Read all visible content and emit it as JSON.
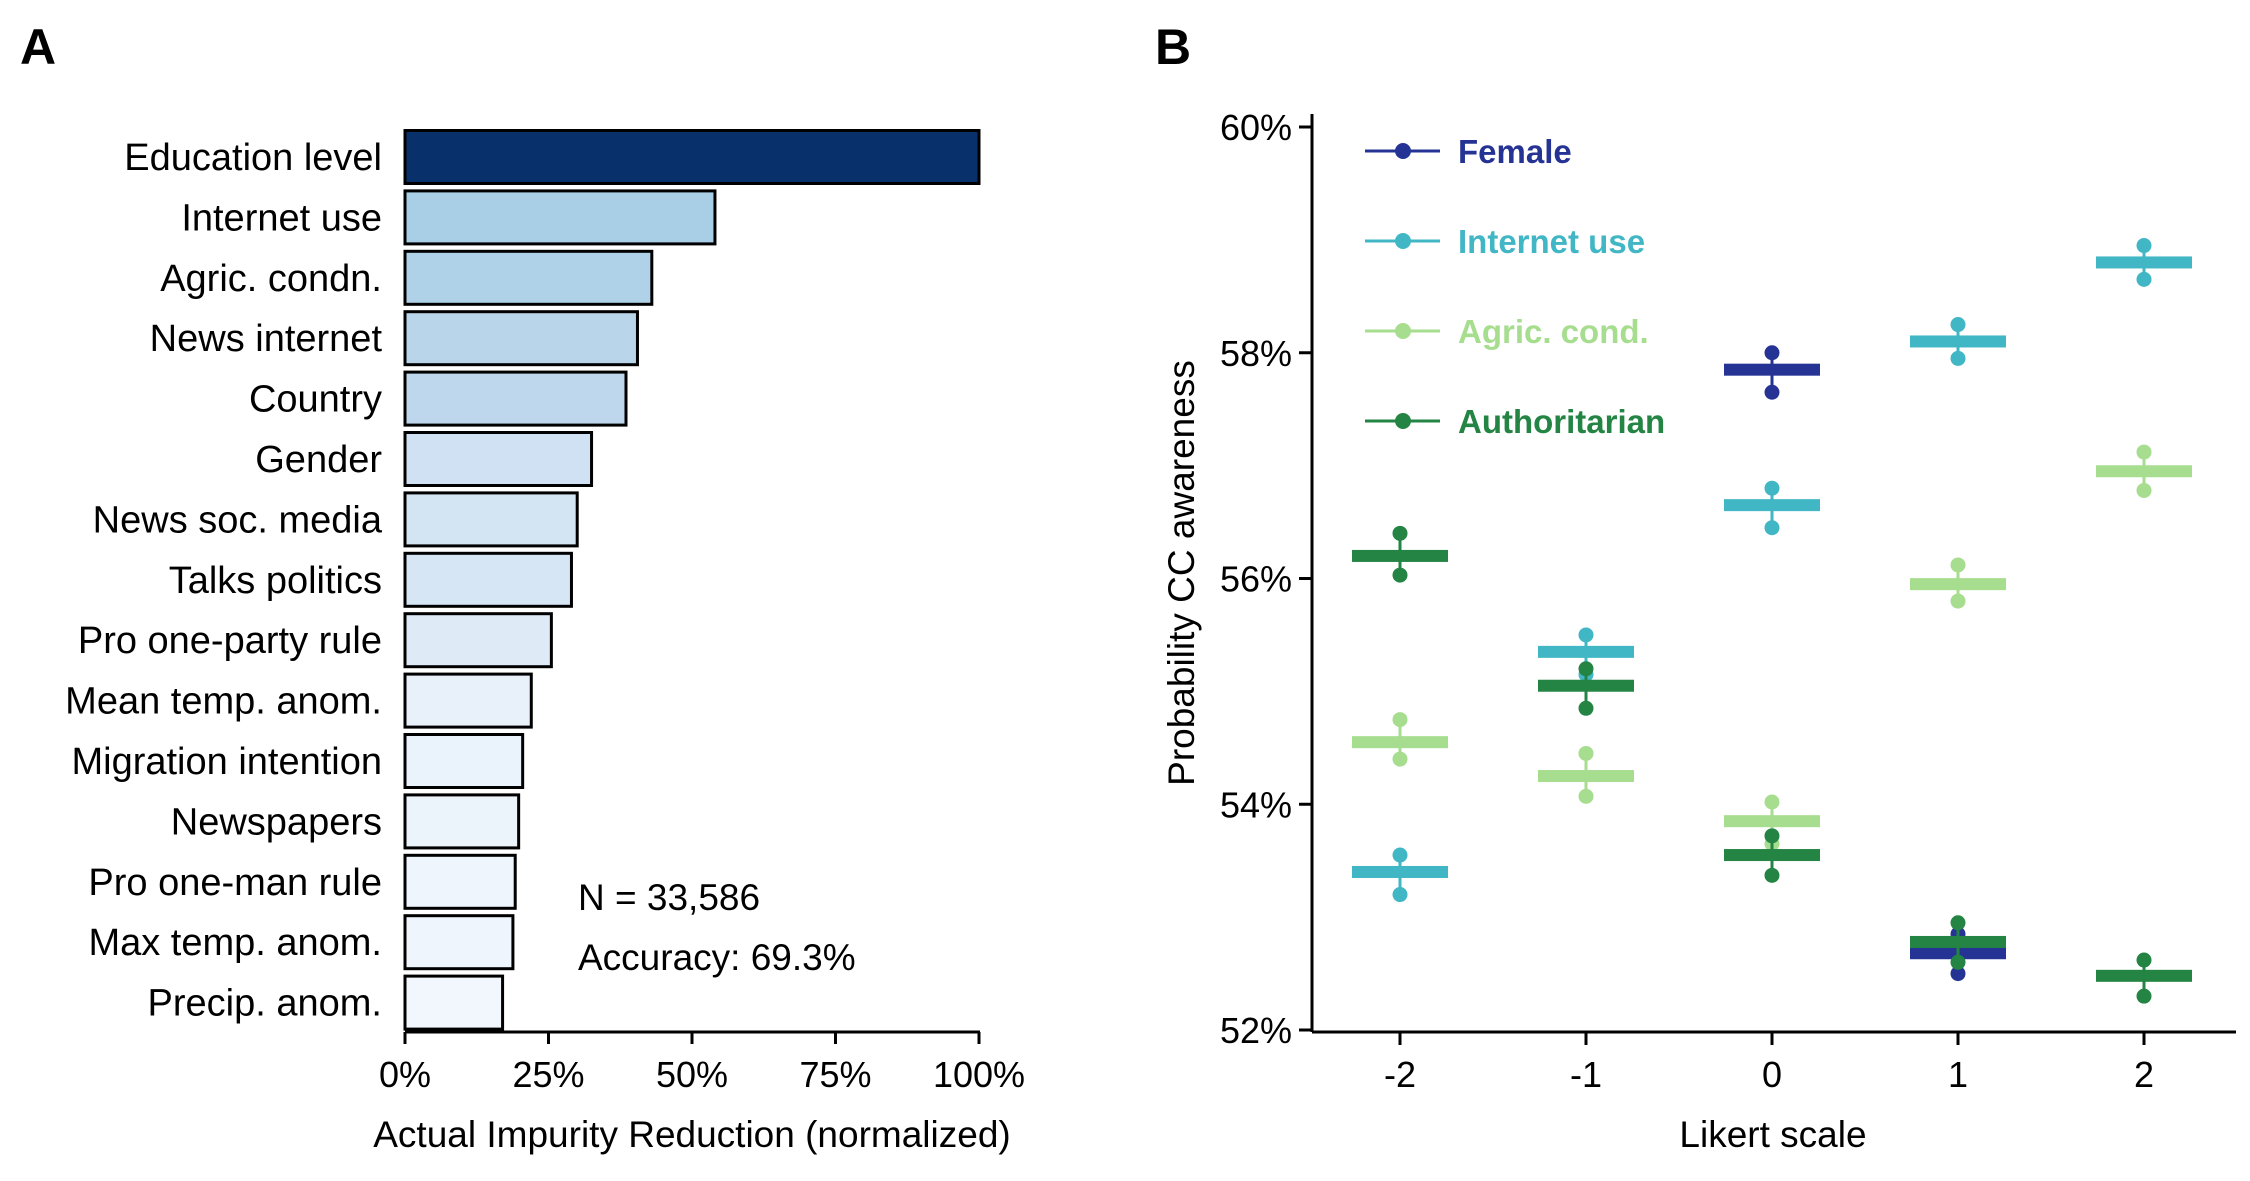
{
  "panels": {
    "a_label": "A",
    "b_label": "B"
  },
  "chart_data": [
    {
      "type": "bar",
      "orientation": "horizontal",
      "categories": [
        "Education level",
        "Internet use",
        "Agric. condn.",
        "News internet",
        "Country",
        "Gender",
        "News soc. media",
        "Talks politics",
        "Pro one-party rule",
        "Mean temp. anom.",
        "Migration intention",
        "Newspapers",
        "Pro one-man rule",
        "Max temp. anom.",
        "Precip. anom."
      ],
      "values": [
        100,
        54,
        43,
        40.5,
        38.5,
        32.5,
        30,
        29,
        25.5,
        22,
        20.5,
        19.8,
        19.2,
        18.8,
        17
      ],
      "colors": [
        "#08306b",
        "#a8cfe5",
        "#b0d2e8",
        "#b8d5ea",
        "#bed7ec",
        "#cfe1f2",
        "#d3e4f3",
        "#d6e6f4",
        "#deebf7",
        "#e8f1fa",
        "#eaf2fb",
        "#ecf4fb",
        "#eef5fc",
        "#eff5fc",
        "#f2f7fd"
      ],
      "xlabel": "Actual Impurity Reduction (normalized)",
      "ylabel": "",
      "xlim": [
        0,
        100
      ],
      "xticks": [
        0,
        25,
        50,
        75,
        100
      ],
      "xtick_labels": [
        "0%",
        "25%",
        "50%",
        "75%",
        "100%"
      ],
      "annotations": [
        "N = 33,586",
        "Accuracy: 69.3%"
      ]
    },
    {
      "type": "scatter",
      "xlabel": "Likert scale",
      "ylabel": "Probability CC awareness",
      "x": [
        -2,
        -1,
        0,
        1,
        2
      ],
      "xtick_labels": [
        "-2",
        "-1",
        "0",
        "1",
        "2"
      ],
      "ylim": [
        52,
        60
      ],
      "yticks": [
        52,
        54,
        56,
        58,
        60
      ],
      "ytick_labels": [
        "52%",
        "54%",
        "56%",
        "58%",
        "60%"
      ],
      "legend_position": "top-left",
      "series": [
        {
          "name": "Female",
          "color": "#253494",
          "points": [
            {
              "x": 0,
              "y": 57.85,
              "lo": 57.65,
              "hi": 58.0
            },
            {
              "x": 1,
              "y": 52.68,
              "lo": 52.5,
              "hi": 52.85
            }
          ]
        },
        {
          "name": "Internet use",
          "color": "#41b6c4",
          "points": [
            {
              "x": -2,
              "y": 53.4,
              "lo": 53.2,
              "hi": 53.55
            },
            {
              "x": -1,
              "y": 55.35,
              "lo": 55.15,
              "hi": 55.5
            },
            {
              "x": 0,
              "y": 56.65,
              "lo": 56.45,
              "hi": 56.8
            },
            {
              "x": 1,
              "y": 58.1,
              "lo": 57.95,
              "hi": 58.25
            },
            {
              "x": 2,
              "y": 58.8,
              "lo": 58.65,
              "hi": 58.95
            }
          ]
        },
        {
          "name": "Agric. cond.",
          "color": "#a6dd8e",
          "points": [
            {
              "x": -2,
              "y": 54.55,
              "lo": 54.4,
              "hi": 54.75
            },
            {
              "x": -1,
              "y": 54.25,
              "lo": 54.07,
              "hi": 54.45
            },
            {
              "x": 0,
              "y": 53.85,
              "lo": 53.65,
              "hi": 54.02
            },
            {
              "x": 1,
              "y": 55.95,
              "lo": 55.8,
              "hi": 56.12
            },
            {
              "x": 2,
              "y": 56.95,
              "lo": 56.78,
              "hi": 57.12
            }
          ]
        },
        {
          "name": "Authoritarian",
          "color": "#238443",
          "points": [
            {
              "x": -2,
              "y": 56.2,
              "lo": 56.03,
              "hi": 56.4
            },
            {
              "x": -1,
              "y": 55.05,
              "lo": 54.85,
              "hi": 55.2
            },
            {
              "x": 0,
              "y": 53.55,
              "lo": 53.37,
              "hi": 53.72
            },
            {
              "x": 1,
              "y": 52.78,
              "lo": 52.6,
              "hi": 52.95
            },
            {
              "x": 2,
              "y": 52.48,
              "lo": 52.3,
              "hi": 52.62
            }
          ]
        }
      ]
    }
  ]
}
